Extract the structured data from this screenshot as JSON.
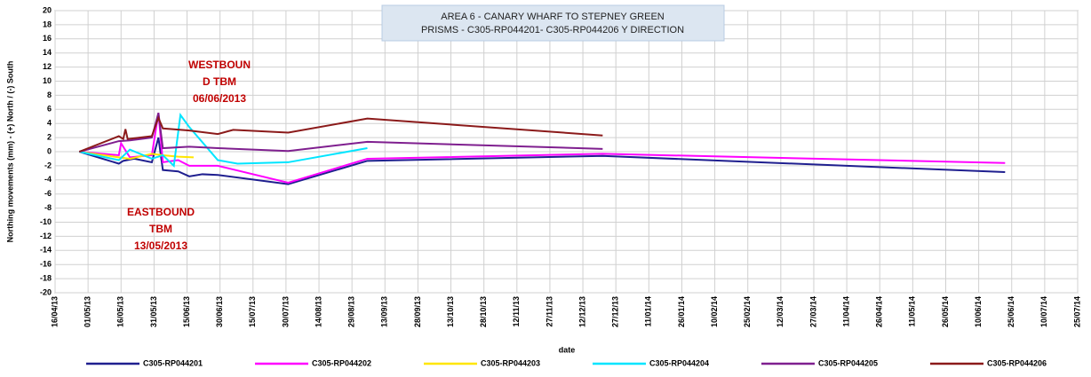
{
  "chart_data": {
    "type": "line",
    "title": [
      "AREA 6 - CANARY WHARF TO STEPNEY GREEN",
      "PRISMS - C305-RP044201- C305-RP044206  Y DIRECTION"
    ],
    "y_label": "Northing movements (mm)  - (+) North / (-) South",
    "x_label": "date",
    "annotations": [
      [
        "WESTBOUN",
        "D TBM",
        "06/06/2013"
      ],
      [
        "EASTBOUND",
        "TBM",
        "13/05/2013"
      ]
    ],
    "ylim": [
      -20,
      20
    ],
    "yticks": [
      -20,
      -18,
      -16,
      -14,
      -12,
      -10,
      -8,
      -6,
      -4,
      -2,
      0,
      2,
      4,
      6,
      8,
      10,
      12,
      14,
      16,
      18,
      20
    ],
    "xlim": [
      "2013-04-16",
      "2014-07-25"
    ],
    "xticks": [
      {
        "value": "2013-04-16",
        "label": "16/04/13"
      },
      {
        "value": "2013-05-01",
        "label": "01/05/13"
      },
      {
        "value": "2013-05-16",
        "label": "16/05/13"
      },
      {
        "value": "2013-05-31",
        "label": "31/05/13"
      },
      {
        "value": "2013-06-15",
        "label": "15/06/13"
      },
      {
        "value": "2013-06-30",
        "label": "30/06/13"
      },
      {
        "value": "2013-07-15",
        "label": "15/07/13"
      },
      {
        "value": "2013-07-30",
        "label": "30/07/13"
      },
      {
        "value": "2013-08-14",
        "label": "14/08/13"
      },
      {
        "value": "2013-08-29",
        "label": "29/08/13"
      },
      {
        "value": "2013-09-13",
        "label": "13/09/13"
      },
      {
        "value": "2013-09-28",
        "label": "28/09/13"
      },
      {
        "value": "2013-10-13",
        "label": "13/10/13"
      },
      {
        "value": "2013-10-28",
        "label": "28/10/13"
      },
      {
        "value": "2013-11-12",
        "label": "12/11/13"
      },
      {
        "value": "2013-11-27",
        "label": "27/11/13"
      },
      {
        "value": "2013-12-12",
        "label": "12/12/13"
      },
      {
        "value": "2013-12-27",
        "label": "27/12/13"
      },
      {
        "value": "2014-01-11",
        "label": "11/01/14"
      },
      {
        "value": "2014-01-26",
        "label": "26/01/14"
      },
      {
        "value": "2014-02-10",
        "label": "10/02/14"
      },
      {
        "value": "2014-02-25",
        "label": "25/02/14"
      },
      {
        "value": "2014-03-12",
        "label": "12/03/14"
      },
      {
        "value": "2014-03-27",
        "label": "27/03/14"
      },
      {
        "value": "2014-04-11",
        "label": "11/04/14"
      },
      {
        "value": "2014-04-26",
        "label": "26/04/14"
      },
      {
        "value": "2014-05-11",
        "label": "11/05/14"
      },
      {
        "value": "2014-05-26",
        "label": "26/05/14"
      },
      {
        "value": "2014-06-10",
        "label": "10/06/14"
      },
      {
        "value": "2014-06-25",
        "label": "25/06/14"
      },
      {
        "value": "2014-07-10",
        "label": "10/07/14"
      },
      {
        "value": "2014-07-25",
        "label": "25/07/14"
      }
    ],
    "grid": true,
    "series": [
      {
        "name": "C305-RP044201",
        "color": "#1f1f8f",
        "x": [
          "2013-04-27",
          "2013-05-15",
          "2013-05-17",
          "2013-05-22",
          "2013-05-30",
          "2013-06-02",
          "2013-06-04",
          "2013-06-11",
          "2013-06-16",
          "2013-06-22",
          "2013-06-29",
          "2013-07-31",
          "2013-09-05",
          "2013-12-21",
          "2014-06-22"
        ],
        "values": [
          0,
          -1.7,
          -1.3,
          -1.0,
          -1.5,
          2.0,
          -2.6,
          -2.8,
          -3.5,
          -3.2,
          -3.3,
          -4.6,
          -1.3,
          -0.6,
          -2.9
        ]
      },
      {
        "name": "C305-RP044202",
        "color": "#ff00ff",
        "x": [
          "2013-04-27",
          "2013-05-15",
          "2013-05-16",
          "2013-05-20",
          "2013-05-30",
          "2013-06-02",
          "2013-06-04",
          "2013-06-11",
          "2013-06-16",
          "2013-06-29",
          "2013-07-31",
          "2013-09-05",
          "2013-12-21",
          "2014-06-22"
        ],
        "values": [
          0,
          -0.5,
          1.2,
          -0.8,
          -0.5,
          5.5,
          -1.5,
          -1.2,
          -2.0,
          -2.0,
          -4.4,
          -1.0,
          -0.3,
          -1.6
        ]
      },
      {
        "name": "C305-RP044203",
        "color": "#ffe600",
        "x": [
          "2013-04-27",
          "2013-05-15",
          "2013-05-20",
          "2013-05-30",
          "2013-06-04",
          "2013-06-11",
          "2013-06-18"
        ],
        "values": [
          0,
          -0.8,
          -1.0,
          -0.3,
          -0.5,
          -0.7,
          -0.8
        ]
      },
      {
        "name": "C305-RP044204",
        "color": "#00e5ff",
        "x": [
          "2013-04-27",
          "2013-05-15",
          "2013-05-20",
          "2013-05-30",
          "2013-06-04",
          "2013-06-09",
          "2013-06-12",
          "2013-06-16",
          "2013-06-29",
          "2013-07-08",
          "2013-07-31",
          "2013-09-05"
        ],
        "values": [
          0,
          -1.2,
          0.3,
          -1.0,
          -0.5,
          -2.0,
          5.2,
          3.5,
          -1.2,
          -1.7,
          -1.5,
          0.5
        ]
      },
      {
        "name": "C305-RP044205",
        "color": "#7f1f8f",
        "x": [
          "2013-04-27",
          "2013-05-15",
          "2013-05-20",
          "2013-05-30",
          "2013-06-02",
          "2013-06-04",
          "2013-06-16",
          "2013-06-29",
          "2013-07-31",
          "2013-09-05",
          "2013-12-21"
        ],
        "values": [
          0,
          1.5,
          1.6,
          2.0,
          5.5,
          0.5,
          0.7,
          0.5,
          0.1,
          1.4,
          0.4
        ]
      },
      {
        "name": "C305-RP044206",
        "color": "#8b1a1a",
        "x": [
          "2013-04-27",
          "2013-05-15",
          "2013-05-17",
          "2013-05-18",
          "2013-05-19",
          "2013-05-30",
          "2013-06-02",
          "2013-06-04",
          "2013-06-16",
          "2013-06-29",
          "2013-07-06",
          "2013-07-31",
          "2013-09-05",
          "2013-12-21"
        ],
        "values": [
          0,
          2.2,
          1.8,
          3.2,
          1.8,
          2.2,
          4.8,
          3.3,
          3.0,
          2.5,
          3.1,
          2.7,
          4.7,
          2.3
        ]
      }
    ]
  }
}
